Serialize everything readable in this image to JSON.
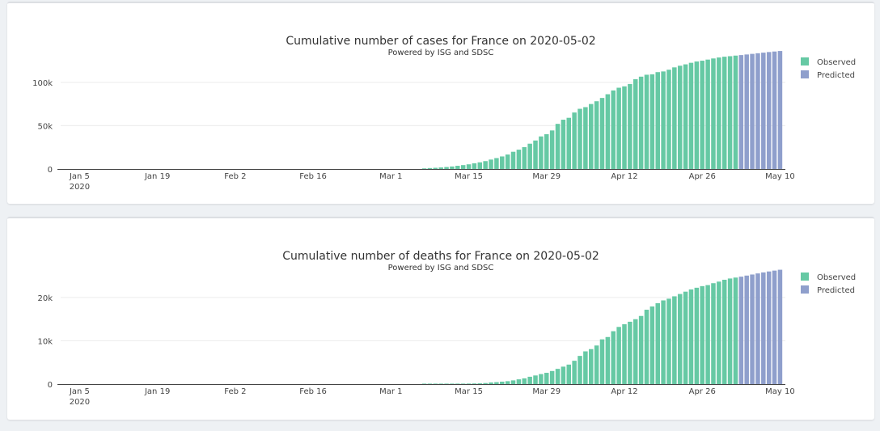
{
  "colors": {
    "observed": "#66c9a4",
    "predicted": "#8f9fcc"
  },
  "chart_data": [
    {
      "type": "bar",
      "title": "Cumulative number of cases for France on 2020-05-02",
      "subtitle": "Powered by ISG and SDSC",
      "x_start": "2020-01-05",
      "x_end": "2020-05-10",
      "x_ticks": [
        "Jan 5",
        "Jan 19",
        "Feb 2",
        "Feb 16",
        "Mar 1",
        "Mar 15",
        "Mar 29",
        "Apr 12",
        "Apr 26",
        "May 10"
      ],
      "x_tick_year": "2020",
      "y_ticks": [
        "0",
        "50k",
        "100k"
      ],
      "ylim": [
        0,
        140000
      ],
      "legend": {
        "placement": "top-right",
        "entries": [
          "Observed",
          "Predicted"
        ]
      },
      "series": [
        {
          "name": "Observed",
          "dates": [
            "2020-03-07",
            "2020-03-08",
            "2020-03-09",
            "2020-03-10",
            "2020-03-11",
            "2020-03-12",
            "2020-03-13",
            "2020-03-14",
            "2020-03-15",
            "2020-03-16",
            "2020-03-17",
            "2020-03-18",
            "2020-03-19",
            "2020-03-20",
            "2020-03-21",
            "2020-03-22",
            "2020-03-23",
            "2020-03-24",
            "2020-03-25",
            "2020-03-26",
            "2020-03-27",
            "2020-03-28",
            "2020-03-29",
            "2020-03-30",
            "2020-03-31",
            "2020-04-01",
            "2020-04-02",
            "2020-04-03",
            "2020-04-04",
            "2020-04-05",
            "2020-04-06",
            "2020-04-07",
            "2020-04-08",
            "2020-04-09",
            "2020-04-10",
            "2020-04-11",
            "2020-04-12",
            "2020-04-13",
            "2020-04-14",
            "2020-04-15",
            "2020-04-16",
            "2020-04-17",
            "2020-04-18",
            "2020-04-19",
            "2020-04-20",
            "2020-04-21",
            "2020-04-22",
            "2020-04-23",
            "2020-04-24",
            "2020-04-25",
            "2020-04-26",
            "2020-04-27",
            "2020-04-28",
            "2020-04-29",
            "2020-04-30",
            "2020-05-01",
            "2020-05-02"
          ],
          "values": [
            700,
            1100,
            1400,
            1800,
            2300,
            2900,
            3700,
            4500,
            5400,
            6600,
            7700,
            9100,
            10900,
            12600,
            14500,
            16700,
            19900,
            22300,
            25200,
            29200,
            32900,
            37600,
            40200,
            44500,
            52100,
            56900,
            59100,
            65200,
            69500,
            71400,
            75000,
            78200,
            82000,
            86300,
            90700,
            93800,
            95400,
            98100,
            103600,
            106600,
            108800,
            109300,
            111800,
            112600,
            114600,
            117300,
            119200,
            120800,
            122600,
            124100,
            125000,
            126300,
            127600,
            128700,
            129600,
            130200,
            130900
          ]
        },
        {
          "name": "Predicted",
          "dates": [
            "2020-05-03",
            "2020-05-04",
            "2020-05-05",
            "2020-05-06",
            "2020-05-07",
            "2020-05-08",
            "2020-05-09",
            "2020-05-10"
          ],
          "values": [
            131500,
            132200,
            132900,
            133600,
            134300,
            135000,
            135600,
            136200
          ]
        }
      ]
    },
    {
      "type": "bar",
      "title": "Cumulative number of deaths for France on 2020-05-02",
      "subtitle": "Powered by ISG and SDSC",
      "x_start": "2020-01-05",
      "x_end": "2020-05-10",
      "x_ticks": [
        "Jan 5",
        "Jan 19",
        "Feb 2",
        "Feb 16",
        "Mar 1",
        "Mar 15",
        "Mar 29",
        "Apr 12",
        "Apr 26",
        "May 10"
      ],
      "x_tick_year": "2020",
      "y_ticks": [
        "0",
        "10k",
        "20k"
      ],
      "ylim": [
        0,
        28000
      ],
      "legend": {
        "placement": "top-right",
        "entries": [
          "Observed",
          "Predicted"
        ]
      },
      "series": [
        {
          "name": "Observed",
          "dates": [
            "2020-03-07",
            "2020-03-08",
            "2020-03-09",
            "2020-03-10",
            "2020-03-11",
            "2020-03-12",
            "2020-03-13",
            "2020-03-14",
            "2020-03-15",
            "2020-03-16",
            "2020-03-17",
            "2020-03-18",
            "2020-03-19",
            "2020-03-20",
            "2020-03-21",
            "2020-03-22",
            "2020-03-23",
            "2020-03-24",
            "2020-03-25",
            "2020-03-26",
            "2020-03-27",
            "2020-03-28",
            "2020-03-29",
            "2020-03-30",
            "2020-03-31",
            "2020-04-01",
            "2020-04-02",
            "2020-04-03",
            "2020-04-04",
            "2020-04-05",
            "2020-04-06",
            "2020-04-07",
            "2020-04-08",
            "2020-04-09",
            "2020-04-10",
            "2020-04-11",
            "2020-04-12",
            "2020-04-13",
            "2020-04-14",
            "2020-04-15",
            "2020-04-16",
            "2020-04-17",
            "2020-04-18",
            "2020-04-19",
            "2020-04-20",
            "2020-04-21",
            "2020-04-22",
            "2020-04-23",
            "2020-04-24",
            "2020-04-25",
            "2020-04-26",
            "2020-04-27",
            "2020-04-28",
            "2020-04-29",
            "2020-04-30",
            "2020-05-01",
            "2020-05-02"
          ],
          "values": [
            16,
            19,
            25,
            33,
            48,
            61,
            79,
            91,
            127,
            148,
            175,
            244,
            372,
            450,
            562,
            674,
            860,
            1100,
            1331,
            1696,
            1995,
            2314,
            2606,
            3024,
            3523,
            4032,
            4503,
            5387,
            6507,
            7560,
            8078,
            8911,
            10328,
            10869,
            12210,
            13197,
            13832,
            14393,
            14986,
            15729,
            17167,
            17920,
            18681,
            19323,
            19718,
            20265,
            20796,
            21340,
            21856,
            22245,
            22614,
            22856,
            23293,
            23660,
            24087,
            24376,
            24594
          ]
        },
        {
          "name": "Predicted",
          "dates": [
            "2020-05-03",
            "2020-05-04",
            "2020-05-05",
            "2020-05-06",
            "2020-05-07",
            "2020-05-08",
            "2020-05-09",
            "2020-05-10"
          ],
          "values": [
            24800,
            25050,
            25300,
            25550,
            25780,
            26000,
            26200,
            26400
          ]
        }
      ]
    }
  ]
}
